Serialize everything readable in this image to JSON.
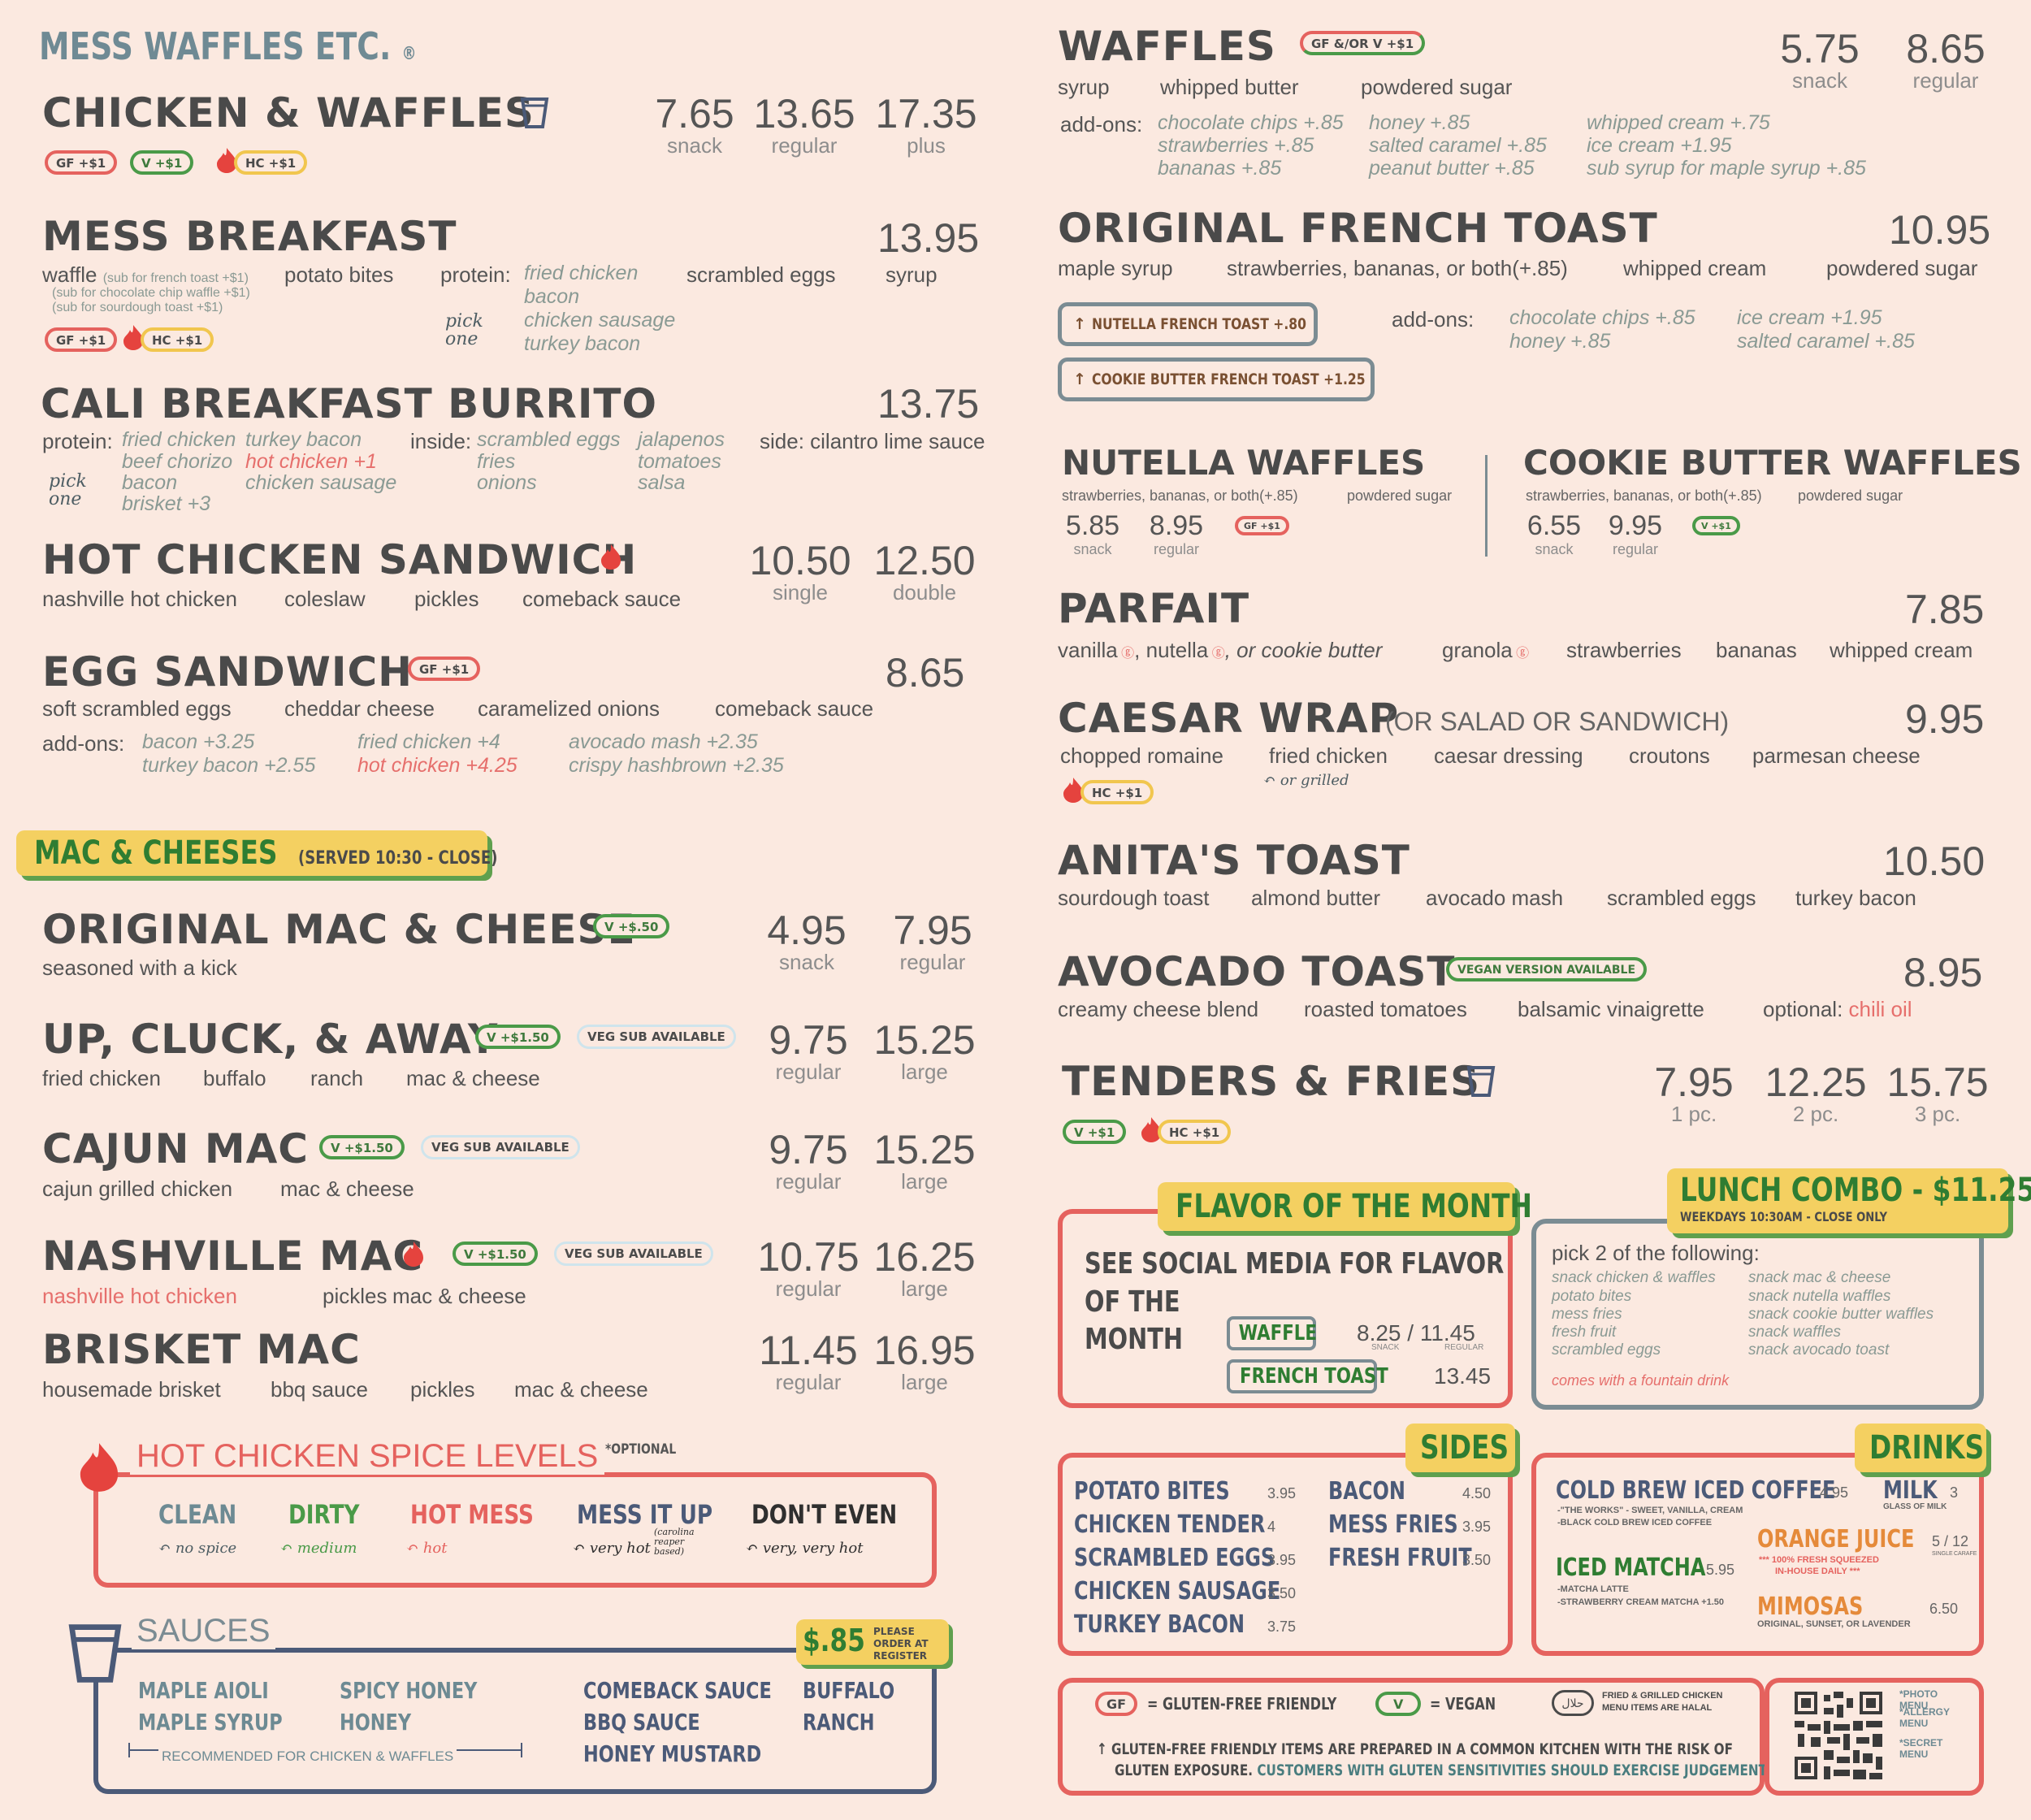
{
  "brand": "MESS WAFFLES ETC.",
  "left": {
    "chicken_waffles": {
      "title": "CHICKEN & WAFFLES",
      "prices": [
        {
          "p": "7.65",
          "l": "snack"
        },
        {
          "p": "13.65",
          "l": "regular"
        },
        {
          "p": "17.35",
          "l": "plus"
        }
      ],
      "badges": [
        "GF +$1",
        "V +$1",
        "HC +$1"
      ]
    },
    "mess_breakfast": {
      "title": "MESS BREAKFAST",
      "price": "13.95",
      "waffle": "waffle",
      "waffle_note": "(sub for french toast +$1)",
      "waffle_note2": "(sub for chocolate chip waffle +$1)",
      "waffle_note3": "(sub for sourdough toast +$1)",
      "potato": "potato bites",
      "protein_label": "protein:",
      "proteins": [
        "fried chicken",
        "bacon",
        "chicken sausage",
        "turkey bacon"
      ],
      "eggs": "scrambled eggs",
      "syrup": "syrup",
      "pick": "pick one",
      "badges": [
        "GF +$1",
        "HC +$1"
      ]
    },
    "cali": {
      "title": "CALI BREAKFAST BURRITO",
      "price": "13.75",
      "protein_label": "protein:",
      "col1": [
        "fried chicken",
        "beef chorizo",
        "bacon",
        "brisket +3"
      ],
      "col2": [
        "turkey bacon",
        "hot chicken +1",
        "chicken sausage"
      ],
      "inside_label": "inside:",
      "col3": [
        "scrambled eggs",
        "fries",
        "onions"
      ],
      "col4": [
        "jalapenos",
        "tomatoes",
        "salsa"
      ],
      "side": "side: cilantro lime sauce",
      "pick": "pick one"
    },
    "hot_sandwich": {
      "title": "HOT CHICKEN SANDWICH",
      "prices": [
        {
          "p": "10.50",
          "l": "single"
        },
        {
          "p": "12.50",
          "l": "double"
        }
      ],
      "ing": [
        "nashville hot chicken",
        "coleslaw",
        "pickles",
        "comeback sauce"
      ]
    },
    "egg_sandwich": {
      "title": "EGG SANDWICH",
      "badge": "GF +$1",
      "price": "8.65",
      "ing": [
        "soft scrambled eggs",
        "cheddar cheese",
        "caramelized onions",
        "comeback sauce"
      ],
      "addons_label": "add-ons:",
      "a1": [
        "bacon +3.25",
        "turkey bacon +2.55"
      ],
      "a2": [
        "fried chicken +4",
        "hot chicken +4.25"
      ],
      "a3": [
        "avocado mash +2.35",
        "crispy hashbrown +2.35"
      ]
    },
    "mac_header": {
      "title": "MAC & CHEESES",
      "served": "(SERVED 10:30 - CLOSE)"
    },
    "original_mac": {
      "title": "ORIGINAL MAC & CHEESE",
      "badge": "V +$.50",
      "desc": "seasoned with a kick",
      "prices": [
        {
          "p": "4.95",
          "l": "snack"
        },
        {
          "p": "7.95",
          "l": "regular"
        }
      ]
    },
    "up_cluck": {
      "title": "UP, CLUCK, & AWAY",
      "badge": "V +$1.50",
      "veg": "VEG SUB AVAILABLE",
      "ing": [
        "fried chicken",
        "buffalo",
        "ranch",
        "mac & cheese"
      ],
      "prices": [
        {
          "p": "9.75",
          "l": "regular"
        },
        {
          "p": "15.25",
          "l": "large"
        }
      ]
    },
    "cajun": {
      "title": "CAJUN MAC",
      "badge": "V +$1.50",
      "veg": "VEG SUB AVAILABLE",
      "ing": [
        "cajun grilled chicken",
        "mac & cheese"
      ],
      "prices": [
        {
          "p": "9.75",
          "l": "regular"
        },
        {
          "p": "15.25",
          "l": "large"
        }
      ]
    },
    "nashville": {
      "title": "NASHVILLE MAC",
      "badge": "V +$1.50",
      "veg": "VEG SUB AVAILABLE",
      "ing": [
        "nashville hot chicken",
        "pickles",
        "mac & cheese"
      ],
      "prices": [
        {
          "p": "10.75",
          "l": "regular"
        },
        {
          "p": "16.25",
          "l": "large"
        }
      ]
    },
    "brisket": {
      "title": "BRISKET MAC",
      "ing": [
        "housemade brisket",
        "bbq sauce",
        "pickles",
        "mac & cheese"
      ],
      "prices": [
        {
          "p": "11.45",
          "l": "regular"
        },
        {
          "p": "16.95",
          "l": "large"
        }
      ]
    },
    "spice": {
      "title": "HOT CHICKEN SPICE LEVELS",
      "optional": "*OPTIONAL",
      "levels": [
        {
          "n": "CLEAN",
          "d": "no spice"
        },
        {
          "n": "DIRTY",
          "d": "medium"
        },
        {
          "n": "HOT MESS",
          "d": "hot"
        },
        {
          "n": "MESS IT UP",
          "d": "very hot",
          "x": "(carolina reaper based)"
        },
        {
          "n": "DON'T EVEN",
          "d": "very, very hot"
        }
      ]
    },
    "sauces": {
      "title": "SAUCES",
      "price": "$.85",
      "order": "PLEASE ORDER AT REGISTER",
      "c1": [
        "MAPLE AIOLI",
        "MAPLE SYRUP"
      ],
      "c2": [
        "SPICY HONEY",
        "HONEY"
      ],
      "c3": [
        "COMEBACK SAUCE",
        "BBQ SAUCE",
        "HONEY MUSTARD"
      ],
      "c4": [
        "BUFFALO",
        "RANCH"
      ],
      "rec": "RECOMMENDED FOR CHICKEN & WAFFLES"
    }
  },
  "right": {
    "waffles": {
      "title": "WAFFLES",
      "badge": "GF &/OR V +$1",
      "prices": [
        {
          "p": "5.75",
          "l": "snack"
        },
        {
          "p": "8.65",
          "l": "regular"
        }
      ],
      "ing": [
        "syrup",
        "whipped butter",
        "powdered sugar"
      ],
      "addons_label": "add-ons:",
      "a1": [
        "chocolate chips +.85",
        "strawberries +.85",
        "bananas +.85"
      ],
      "a2": [
        "honey +.85",
        "salted caramel +.85",
        "peanut butter +.85"
      ],
      "a3": [
        "whipped cream +.75",
        "ice cream +1.95",
        "sub syrup for maple syrup +.85"
      ]
    },
    "french_toast": {
      "title": "ORIGINAL FRENCH TOAST",
      "price": "10.95",
      "ing": [
        "maple syrup",
        "strawberries, bananas, or both(+.85)",
        "whipped cream",
        "powdered sugar"
      ],
      "nutella": "NUTELLA FRENCH TOAST +.80",
      "cookie": "COOKIE BUTTER FRENCH TOAST +1.25",
      "addons_label": "add-ons:",
      "a1": [
        "chocolate chips +.85",
        "honey +.85"
      ],
      "a2": [
        "ice cream +1.95",
        "salted caramel +.85"
      ]
    },
    "nutella_waffles": {
      "title": "NUTELLA WAFFLES",
      "ing": [
        "strawberries, bananas, or both(+.85)",
        "powdered sugar"
      ],
      "prices": [
        {
          "p": "5.85",
          "l": "snack"
        },
        {
          "p": "8.95",
          "l": "regular"
        }
      ],
      "badge": "GF +$1"
    },
    "cookie_waffles": {
      "title": "COOKIE BUTTER WAFFLES",
      "ing": [
        "strawberries, bananas, or both(+.85)",
        "powdered sugar"
      ],
      "prices": [
        {
          "p": "6.55",
          "l": "snack"
        },
        {
          "p": "9.95",
          "l": "regular"
        }
      ],
      "badge": "V +$1"
    },
    "parfait": {
      "title": "PARFAIT",
      "price": "7.85",
      "ing": [
        "vanilla",
        ", nutella",
        ", or cookie butter",
        "granola",
        "strawberries",
        "bananas",
        "whipped cream"
      ]
    },
    "caesar": {
      "title": "CAESAR WRAP",
      "subtitle": "(OR SALAD OR SANDWICH)",
      "price": "9.95",
      "ing": [
        "chopped romaine",
        "fried chicken",
        "caesar dressing",
        "croutons",
        "parmesan cheese"
      ],
      "grilled": "or grilled",
      "badge": "HC +$1"
    },
    "anita": {
      "title": "ANITA'S TOAST",
      "price": "10.50",
      "ing": [
        "sourdough toast",
        "almond butter",
        "avocado mash",
        "scrambled eggs",
        "turkey bacon"
      ]
    },
    "avocado": {
      "title": "AVOCADO TOAST",
      "badge": "VEGAN VERSION AVAILABLE",
      "price": "8.95",
      "ing": [
        "creamy cheese blend",
        "roasted tomatoes",
        "balsamic vinaigrette"
      ],
      "optional": "optional:",
      "chili": "chili oil"
    },
    "tenders": {
      "title": "TENDERS & FRIES",
      "prices": [
        {
          "p": "7.95",
          "l": "1 pc."
        },
        {
          "p": "12.25",
          "l": "2 pc."
        },
        {
          "p": "15.75",
          "l": "3 pc."
        }
      ],
      "badges": [
        "V +$1",
        "HC +$1"
      ]
    },
    "flavor": {
      "tag": "FLAVOR OF THE MONTH",
      "text1": "SEE SOCIAL MEDIA FOR FLAVOR",
      "text2": "OF THE",
      "text3": "MONTH",
      "waffle": "WAFFLE",
      "waffle_price": "8.25 / 11.45",
      "snack": "SNACK",
      "regular": "REGULAR",
      "french": "FRENCH TOAST",
      "french_price": "13.45"
    },
    "lunch": {
      "tag": "LUNCH COMBO - $11.25",
      "when": "WEEKDAYS 10:30AM - CLOSE ONLY",
      "pick": "pick 2 of the following:",
      "c1": [
        "snack chicken & waffles",
        "potato bites",
        "mess fries",
        "fresh fruit",
        "scrambled eggs"
      ],
      "c2": [
        "snack mac & cheese",
        "snack nutella waffles",
        "snack cookie butter waffles",
        "snack waffles",
        "snack avocado toast"
      ],
      "note": "comes with a fountain drink"
    },
    "sides": {
      "tag": "SIDES",
      "items1": [
        {
          "n": "POTATO BITES",
          "p": "3.95"
        },
        {
          "n": "CHICKEN TENDER",
          "p": "4"
        },
        {
          "n": "SCRAMBLED EGGS",
          "p": "3.95"
        },
        {
          "n": "CHICKEN SAUSAGE",
          "p": "3.50"
        },
        {
          "n": "TURKEY BACON",
          "p": "3.75"
        }
      ],
      "items2": [
        {
          "n": "BACON",
          "p": "4.50"
        },
        {
          "n": "MESS FRIES",
          "p": "3.95"
        },
        {
          "n": "FRESH FRUIT",
          "p": "3.50"
        }
      ]
    },
    "drinks": {
      "tag": "DRINKS",
      "cold_brew": "COLD BREW ICED COFFEE",
      "cold_price": "4.95",
      "cold_d1": "-\"THE WORKS\" - SWEET, VANILLA, CREAM",
      "cold_d2": "-BLACK COLD BREW ICED COFFEE",
      "matcha": "ICED MATCHA",
      "matcha_price": "5.95",
      "matcha_d1": "-MATCHA LATTE",
      "matcha_d2": "-STRAWBERRY CREAM MATCHA +1.50",
      "milk": "MILK",
      "milk_price": "3",
      "milk_d": "GLASS OF MILK",
      "oj": "ORANGE JUICE",
      "oj_price": "5 / 12",
      "oj_d1": "*** 100% FRESH SQUEEZED",
      "oj_d2": "IN-HOUSE DAILY ***",
      "oj_single": "SINGLE",
      "oj_carafe": "CARAFE",
      "mimosas": "MIMOSAS",
      "mimosas_price": "6.50",
      "mimosas_d": "ORIGINAL, SUNSET, OR LAVENDER"
    },
    "legend": {
      "gf": "GF",
      "gf_text": "= GLUTEN-FREE FRIENDLY",
      "v": "V",
      "v_text": "= VEGAN",
      "halal": "حلال",
      "halal_text": "FRIED & GRILLED CHICKEN MENU ITEMS ARE HALAL",
      "note1": "GLUTEN-FREE FRIENDLY ITEMS ARE PREPARED IN A COMMON KITCHEN WITH THE RISK OF",
      "note2a": "GLUTEN EXPOSURE.",
      "note2b": " CUSTOMERS WITH GLUTEN SENSITIVITIES SHOULD EXERCISE JUDGEMENT."
    },
    "qr": {
      "l1": "*PHOTO MENU",
      "l2": "*ALLERGY MENU",
      "l3": "*SECRET MENU"
    }
  },
  "colors": {
    "red": "#e5625e",
    "green": "#4a9a48",
    "yellow": "#f4d061",
    "slate": "#7b8c93",
    "navy": "#4b5a78"
  }
}
